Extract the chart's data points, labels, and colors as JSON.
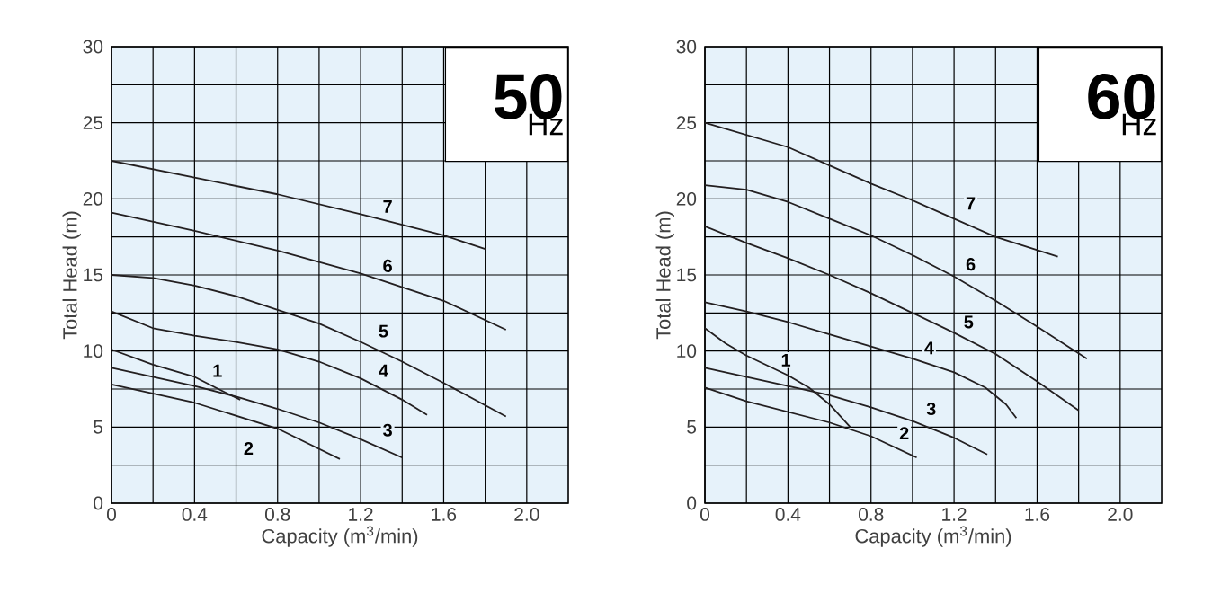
{
  "chart_data": [
    {
      "type": "line",
      "title": "50",
      "subtitle": "Hz",
      "xlabel": "Capacity (m$^{3}$/min)",
      "ylabel": "Total Head (m)",
      "xlim": [
        0,
        2.2
      ],
      "ylim": [
        0,
        30
      ],
      "xticks": [
        0,
        {
          "value": 0.2,
          "label": null
        },
        0.4,
        {
          "value": 0.6,
          "label": null
        },
        0.8,
        {
          "value": 1.0,
          "label": null
        },
        1.2,
        {
          "value": 1.4,
          "label": null
        },
        1.6,
        {
          "value": 1.8,
          "label": null
        },
        {
          "value": 2.0,
          "label": "2.0"
        }
      ],
      "yticks": [
        0,
        {
          "value": 2.5,
          "label": null
        },
        5,
        {
          "value": 7.5,
          "label": null
        },
        10,
        {
          "value": 12.5,
          "label": null
        },
        15,
        {
          "value": 17.5,
          "label": null
        },
        20,
        {
          "value": 22.5,
          "label": null
        },
        25,
        {
          "value": 27.5,
          "label": null
        },
        30
      ],
      "grid": true,
      "line_style": "solid",
      "series": [
        {
          "color": "#231f20",
          "x": [
            0,
            0.2,
            0.4,
            0.5,
            0.62
          ],
          "values": [
            10.1,
            9.1,
            8.3,
            7.6,
            6.8
          ]
        },
        {
          "color": "#231f20",
          "x": [
            0,
            0.4,
            0.8,
            1.1
          ],
          "values": [
            7.8,
            6.6,
            4.9,
            2.9
          ]
        },
        {
          "color": "#231f20",
          "x": [
            0,
            0.4,
            0.6,
            0.8,
            1.0,
            1.2,
            1.4
          ],
          "values": [
            8.9,
            7.7,
            7.0,
            6.2,
            5.3,
            4.2,
            3.0
          ]
        },
        {
          "color": "#231f20",
          "x": [
            0,
            0.2,
            0.4,
            0.6,
            0.8,
            1.0,
            1.2,
            1.4,
            1.52
          ],
          "values": [
            12.6,
            11.5,
            11.0,
            10.6,
            10.1,
            9.3,
            8.2,
            6.8,
            5.8
          ]
        },
        {
          "color": "#231f20",
          "x": [
            0,
            0.2,
            0.4,
            0.6,
            0.8,
            1.0,
            1.2,
            1.4,
            1.6,
            1.9
          ],
          "values": [
            15.0,
            14.8,
            14.3,
            13.6,
            12.7,
            11.8,
            10.6,
            9.3,
            7.9,
            5.7
          ]
        },
        {
          "color": "#231f20",
          "x": [
            0,
            0.4,
            0.8,
            1.2,
            1.6,
            1.9
          ],
          "values": [
            19.1,
            17.9,
            16.6,
            15.1,
            13.3,
            11.4
          ]
        },
        {
          "color": "#231f20",
          "x": [
            0,
            0.4,
            0.8,
            1.2,
            1.4,
            1.6,
            1.8
          ],
          "values": [
            22.5,
            21.4,
            20.3,
            19.0,
            18.3,
            17.6,
            16.7
          ]
        }
      ],
      "annotations": [
        {
          "text": "1",
          "x": 0.51,
          "y": 8.7
        },
        {
          "text": "2",
          "x": 0.66,
          "y": 3.6
        },
        {
          "text": "3",
          "x": 1.33,
          "y": 4.8
        },
        {
          "text": "4",
          "x": 1.31,
          "y": 8.7
        },
        {
          "text": "5",
          "x": 1.31,
          "y": 11.3
        },
        {
          "text": "6",
          "x": 1.33,
          "y": 15.6
        },
        {
          "text": "7",
          "x": 1.33,
          "y": 19.5
        }
      ]
    },
    {
      "type": "line",
      "title": "60",
      "subtitle": "Hz",
      "xlabel": "Capacity (m$^{3}$/min)",
      "ylabel": "Total Head (m)",
      "xlim": [
        0,
        2.2
      ],
      "ylim": [
        0,
        30
      ],
      "xticks": [
        0,
        {
          "value": 0.2,
          "label": null
        },
        0.4,
        {
          "value": 0.6,
          "label": null
        },
        0.8,
        {
          "value": 1.0,
          "label": null
        },
        1.2,
        {
          "value": 1.4,
          "label": null
        },
        1.6,
        {
          "value": 1.8,
          "label": null
        },
        {
          "value": 2.0,
          "label": "2.0"
        }
      ],
      "yticks": [
        0,
        {
          "value": 2.5,
          "label": null
        },
        5,
        {
          "value": 7.5,
          "label": null
        },
        10,
        {
          "value": 12.5,
          "label": null
        },
        15,
        {
          "value": 17.5,
          "label": null
        },
        20,
        {
          "value": 22.5,
          "label": null
        },
        25,
        {
          "value": 27.5,
          "label": null
        },
        30
      ],
      "grid": true,
      "line_style": "solid",
      "series": [
        {
          "color": "#231f20",
          "x": [
            0,
            0.1,
            0.2,
            0.4,
            0.5,
            0.6,
            0.7
          ],
          "values": [
            11.5,
            10.5,
            9.7,
            8.4,
            7.6,
            6.5,
            5.0
          ]
        },
        {
          "color": "#231f20",
          "x": [
            0,
            0.2,
            0.4,
            0.6,
            0.8,
            1.02
          ],
          "values": [
            7.6,
            6.7,
            6.0,
            5.3,
            4.4,
            3.0
          ]
        },
        {
          "color": "#231f20",
          "x": [
            0,
            0.4,
            0.6,
            0.8,
            1.0,
            1.2,
            1.36
          ],
          "values": [
            8.9,
            7.7,
            7.1,
            6.3,
            5.4,
            4.3,
            3.2
          ]
        },
        {
          "color": "#231f20",
          "x": [
            0,
            0.2,
            0.4,
            0.6,
            0.8,
            1.0,
            1.2,
            1.35,
            1.45,
            1.5
          ],
          "values": [
            13.2,
            12.6,
            11.9,
            11.1,
            10.3,
            9.5,
            8.6,
            7.6,
            6.5,
            5.6
          ]
        },
        {
          "color": "#231f20",
          "x": [
            0,
            0.2,
            0.4,
            0.6,
            0.8,
            1.0,
            1.2,
            1.4,
            1.6,
            1.8
          ],
          "values": [
            18.2,
            17.1,
            16.1,
            15.0,
            13.8,
            12.5,
            11.2,
            9.8,
            8.0,
            6.1
          ]
        },
        {
          "color": "#231f20",
          "x": [
            0,
            0.2,
            0.4,
            0.6,
            0.8,
            1.0,
            1.2,
            1.4,
            1.6,
            1.84
          ],
          "values": [
            20.9,
            20.6,
            19.8,
            18.7,
            17.6,
            16.3,
            14.9,
            13.3,
            11.6,
            9.5
          ]
        },
        {
          "color": "#231f20",
          "x": [
            0,
            0.4,
            0.6,
            0.8,
            1.0,
            1.2,
            1.4,
            1.7
          ],
          "values": [
            25.0,
            23.4,
            22.2,
            21.0,
            19.9,
            18.7,
            17.5,
            16.2
          ]
        }
      ],
      "annotations": [
        {
          "text": "1",
          "x": 0.39,
          "y": 9.4
        },
        {
          "text": "2",
          "x": 0.96,
          "y": 4.6
        },
        {
          "text": "3",
          "x": 1.09,
          "y": 6.2
        },
        {
          "text": "4",
          "x": 1.08,
          "y": 10.2
        },
        {
          "text": "5",
          "x": 1.27,
          "y": 11.9
        },
        {
          "text": "6",
          "x": 1.28,
          "y": 15.7
        },
        {
          "text": "7",
          "x": 1.28,
          "y": 19.7
        }
      ]
    }
  ]
}
